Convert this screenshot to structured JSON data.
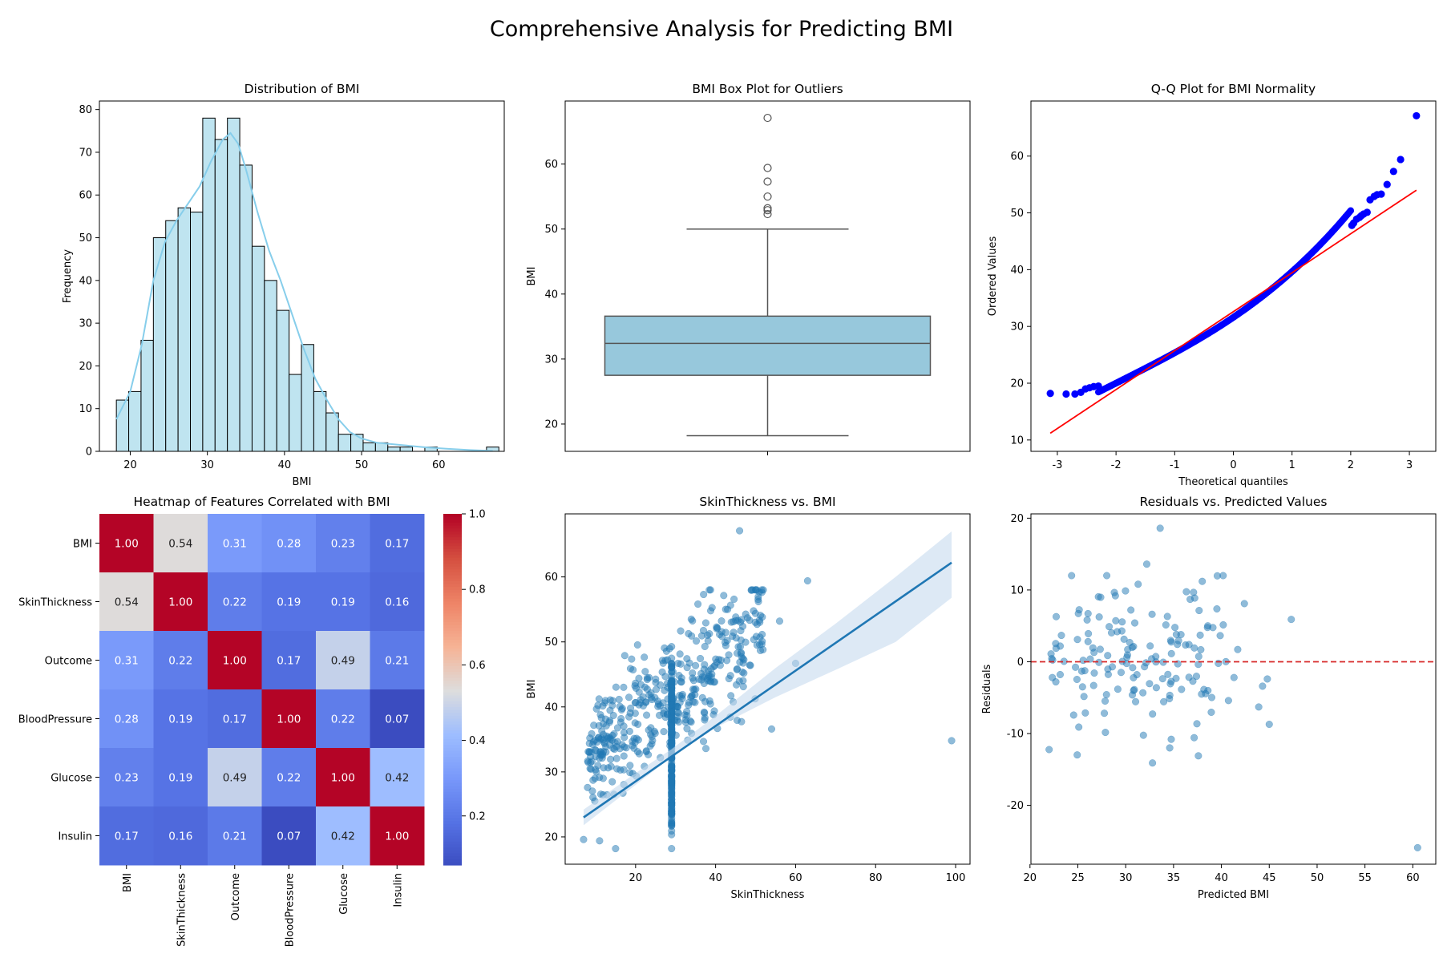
{
  "suptitle": "Comprehensive Analysis for Predicting BMI",
  "chart_data": [
    {
      "type": "bar",
      "title": "Distribution of BMI",
      "xlabel": "BMI",
      "ylabel": "Frequency",
      "xlim": [
        16,
        68.5
      ],
      "ylim": [
        0,
        82
      ],
      "xticks": [
        20,
        30,
        40,
        50,
        60
      ],
      "yticks": [
        0,
        10,
        20,
        30,
        40,
        50,
        60,
        70,
        80
      ],
      "bin_start": 18.2,
      "bin_width": 1.6,
      "values": [
        12,
        14,
        26,
        50,
        54,
        57,
        56,
        78,
        73,
        78,
        67,
        48,
        40,
        33,
        18,
        25,
        14,
        9,
        4,
        4,
        2,
        2,
        1,
        1,
        0,
        1,
        0,
        0,
        0,
        0,
        1
      ],
      "kde": [
        [
          18.2,
          7.5
        ],
        [
          20,
          14
        ],
        [
          21.5,
          25
        ],
        [
          23,
          40
        ],
        [
          24.5,
          49
        ],
        [
          26,
          54
        ],
        [
          27.5,
          58
        ],
        [
          29,
          62
        ],
        [
          30.5,
          68
        ],
        [
          32,
          73
        ],
        [
          33,
          74.5
        ],
        [
          34,
          72
        ],
        [
          35,
          66
        ],
        [
          36.5,
          56
        ],
        [
          38,
          47
        ],
        [
          39.5,
          40
        ],
        [
          41,
          32
        ],
        [
          42.5,
          24
        ],
        [
          44,
          17
        ],
        [
          45.5,
          12
        ],
        [
          47,
          7.5
        ],
        [
          48.5,
          4.5
        ],
        [
          50,
          3
        ],
        [
          52,
          2
        ],
        [
          55,
          1.5
        ],
        [
          58,
          1
        ],
        [
          61,
          0.6
        ],
        [
          64,
          0.3
        ],
        [
          67,
          0.1
        ]
      ],
      "colors": {
        "bar": "#bfe4f0",
        "edge": "#000000",
        "kde": "#87ceeb"
      }
    },
    {
      "type": "box",
      "title": "BMI Box Plot for Outliers",
      "ylabel": "BMI",
      "ylim": [
        15.8,
        69.7
      ],
      "yticks": [
        20,
        30,
        40,
        50,
        60
      ],
      "box": {
        "whisker_low": 18.2,
        "q1": 27.5,
        "median": 32.4,
        "q3": 36.6,
        "whisker_high": 50.0
      },
      "outliers": [
        67.1,
        59.4,
        57.3,
        55.0,
        53.2,
        52.9,
        52.3
      ],
      "colors": {
        "box": "#97c8dc",
        "line": "#555555"
      }
    },
    {
      "type": "scatter",
      "title": "Q-Q Plot for BMI Normality",
      "xlabel": "Theoretical quantiles",
      "ylabel": "Ordered Values",
      "xlim": [
        -3.45,
        3.45
      ],
      "ylim": [
        8.0,
        69.7
      ],
      "xticks": [
        -3,
        -2,
        -1,
        0,
        1,
        2,
        3
      ],
      "yticks": [
        10,
        20,
        30,
        40,
        50,
        60
      ],
      "fit_line": [
        [
          -3.12,
          11.2
        ],
        [
          3.12,
          54.0
        ]
      ],
      "tail_points": [
        [
          -3.12,
          18.2
        ],
        [
          -2.85,
          18.1
        ],
        [
          -2.7,
          18.1
        ],
        [
          -2.6,
          18.4
        ],
        [
          -2.52,
          19.0
        ],
        [
          -2.45,
          19.2
        ],
        [
          -2.38,
          19.4
        ],
        [
          -2.3,
          19.5
        ],
        [
          2.02,
          47.8
        ],
        [
          2.05,
          48.2
        ],
        [
          2.1,
          48.9
        ],
        [
          2.15,
          49.2
        ],
        [
          2.18,
          49.5
        ],
        [
          2.22,
          49.8
        ],
        [
          2.28,
          50.1
        ],
        [
          2.33,
          52.3
        ],
        [
          2.4,
          52.9
        ],
        [
          2.45,
          53.2
        ],
        [
          2.52,
          53.3
        ],
        [
          2.62,
          55.0
        ],
        [
          2.73,
          57.3
        ],
        [
          2.85,
          59.4
        ],
        [
          3.12,
          67.1
        ]
      ],
      "colors": {
        "points": "#0000ff",
        "line": "#ff0000"
      }
    },
    {
      "type": "heatmap",
      "title": "Heatmap of Features Correlated with BMI",
      "labels": [
        "BMI",
        "SkinThickness",
        "Outcome",
        "BloodPressure",
        "Glucose",
        "Insulin"
      ],
      "matrix": [
        [
          1.0,
          0.54,
          0.31,
          0.28,
          0.23,
          0.17
        ],
        [
          0.54,
          1.0,
          0.22,
          0.19,
          0.19,
          0.16
        ],
        [
          0.31,
          0.22,
          1.0,
          0.17,
          0.49,
          0.21
        ],
        [
          0.28,
          0.19,
          0.17,
          1.0,
          0.22,
          0.07
        ],
        [
          0.23,
          0.19,
          0.49,
          0.22,
          1.0,
          0.42
        ],
        [
          0.17,
          0.16,
          0.21,
          0.07,
          0.42,
          1.0
        ]
      ],
      "colorbar_range": [
        0.07,
        1.0
      ],
      "colorbar_ticks": [
        0.2,
        0.4,
        0.6,
        0.8,
        1.0
      ],
      "colormap": "coolwarm"
    },
    {
      "type": "scatter",
      "title": "SkinThickness vs. BMI",
      "xlabel": "SkinThickness",
      "ylabel": "BMI",
      "xlim": [
        2.4,
        103.6
      ],
      "ylim": [
        15.8,
        69.7
      ],
      "xticks": [
        20,
        40,
        60,
        80,
        100
      ],
      "yticks": [
        20,
        30,
        40,
        50,
        60
      ],
      "regression": {
        "x0": 7,
        "y0": 23.0,
        "x1": 99,
        "y1": 62.2
      },
      "ci_band": [
        [
          7,
          21.8,
          24.2
        ],
        [
          20,
          28.0,
          29.8
        ],
        [
          29,
          32.3,
          33.5
        ],
        [
          40,
          36.8,
          38.6
        ],
        [
          55,
          41.5,
          46.0
        ],
        [
          70,
          45.7,
          52.8
        ],
        [
          85,
          50.0,
          60.0
        ],
        [
          99,
          56.8,
          67.0
        ]
      ],
      "highlight_points": [
        [
          46,
          67.1
        ],
        [
          63,
          59.4
        ],
        [
          37,
          57.3
        ],
        [
          43,
          55.0
        ],
        [
          56,
          53.2
        ],
        [
          99,
          34.8
        ],
        [
          60,
          46.7
        ],
        [
          51,
          49.6
        ],
        [
          54,
          36.6
        ],
        [
          7,
          19.6
        ],
        [
          11,
          19.4
        ],
        [
          15,
          18.2
        ],
        [
          29,
          18.2
        ],
        [
          8,
          27.6
        ]
      ],
      "colors": {
        "points": "#1f77b4",
        "band": "#c6dbef"
      }
    },
    {
      "type": "scatter",
      "title": "Residuals vs. Predicted Values",
      "xlabel": "Predicted BMI",
      "ylabel": "Residuals",
      "xlim": [
        20.1,
        62.4
      ],
      "ylim": [
        -28.2,
        20.6
      ],
      "xticks": [
        20,
        25,
        30,
        35,
        40,
        45,
        50,
        55,
        60
      ],
      "yticks": [
        -20,
        -10,
        0,
        10,
        20
      ],
      "zero_line": 0,
      "highlight_points": [
        [
          33.6,
          18.6
        ],
        [
          32.2,
          13.6
        ],
        [
          31.3,
          10.8
        ],
        [
          38.0,
          11.2
        ],
        [
          42.4,
          8.1
        ],
        [
          47.3,
          5.9
        ],
        [
          60.5,
          -25.9
        ],
        [
          32.8,
          -14.1
        ],
        [
          34.6,
          -12.0
        ],
        [
          22.2,
          1.1
        ],
        [
          22.7,
          -2.8
        ],
        [
          43.9,
          -6.3
        ],
        [
          44.3,
          -3.4
        ],
        [
          44.8,
          -2.4
        ]
      ],
      "colors": {
        "points": "#1f77b4",
        "zero_line": "#d62728"
      }
    }
  ]
}
